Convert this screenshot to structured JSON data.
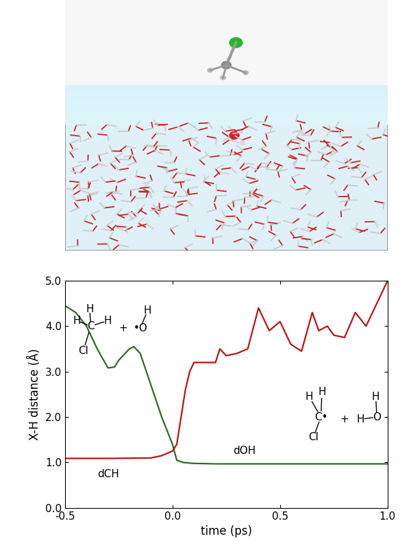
{
  "chart_data": {
    "type": "line",
    "xlabel": "time (ps)",
    "ylabel": "X-H distance (Å)",
    "xlim": [
      -0.5,
      1.0
    ],
    "ylim": [
      0.0,
      5.0
    ],
    "xticks": [
      -0.5,
      0.0,
      0.5,
      1.0
    ],
    "yticks": [
      0.0,
      1.0,
      2.0,
      3.0,
      4.0,
      5.0
    ],
    "grid": false,
    "series": [
      {
        "name": "dOH",
        "color": "#2e6b1f",
        "line_style": "solid",
        "x": [
          -0.5,
          -0.45,
          -0.4,
          -0.35,
          -0.3,
          -0.27,
          -0.25,
          -0.2,
          -0.18,
          -0.15,
          -0.1,
          -0.05,
          0.0,
          0.02,
          0.05,
          0.1,
          0.2,
          0.3,
          0.4,
          0.5,
          0.6,
          0.7,
          0.8,
          0.9,
          1.0
        ],
        "values": [
          4.45,
          4.3,
          4.0,
          3.5,
          3.08,
          3.1,
          3.25,
          3.5,
          3.55,
          3.4,
          2.7,
          2.0,
          1.4,
          1.05,
          1.0,
          0.98,
          0.97,
          0.97,
          0.97,
          0.97,
          0.97,
          0.97,
          0.97,
          0.97,
          0.97
        ]
      },
      {
        "name": "dCH",
        "color": "#b81414",
        "line_style": "solid",
        "x": [
          -0.5,
          -0.3,
          -0.1,
          -0.05,
          0.0,
          0.02,
          0.04,
          0.06,
          0.08,
          0.1,
          0.15,
          0.2,
          0.22,
          0.25,
          0.3,
          0.35,
          0.4,
          0.45,
          0.5,
          0.55,
          0.6,
          0.65,
          0.68,
          0.72,
          0.75,
          0.8,
          0.85,
          0.9,
          0.95,
          1.0
        ],
        "values": [
          1.09,
          1.09,
          1.1,
          1.15,
          1.25,
          1.4,
          2.0,
          2.6,
          3.0,
          3.2,
          3.2,
          3.2,
          3.5,
          3.35,
          3.4,
          3.5,
          4.4,
          3.9,
          4.1,
          3.6,
          3.45,
          4.3,
          3.9,
          4.0,
          3.8,
          3.75,
          4.3,
          4.0,
          4.5,
          5.0
        ]
      }
    ],
    "annotations": [
      {
        "text": "dCH",
        "x": -0.35,
        "y": 0.75
      },
      {
        "text": "dOH",
        "x": 0.28,
        "y": 1.25
      }
    ],
    "structures": {
      "reactants": [
        "H",
        "H",
        "H",
        "C",
        "Cl",
        "+",
        "•O",
        "H"
      ],
      "products": [
        "H",
        "H",
        "C•",
        "Cl",
        "+",
        "H",
        "O",
        "H"
      ]
    }
  }
}
